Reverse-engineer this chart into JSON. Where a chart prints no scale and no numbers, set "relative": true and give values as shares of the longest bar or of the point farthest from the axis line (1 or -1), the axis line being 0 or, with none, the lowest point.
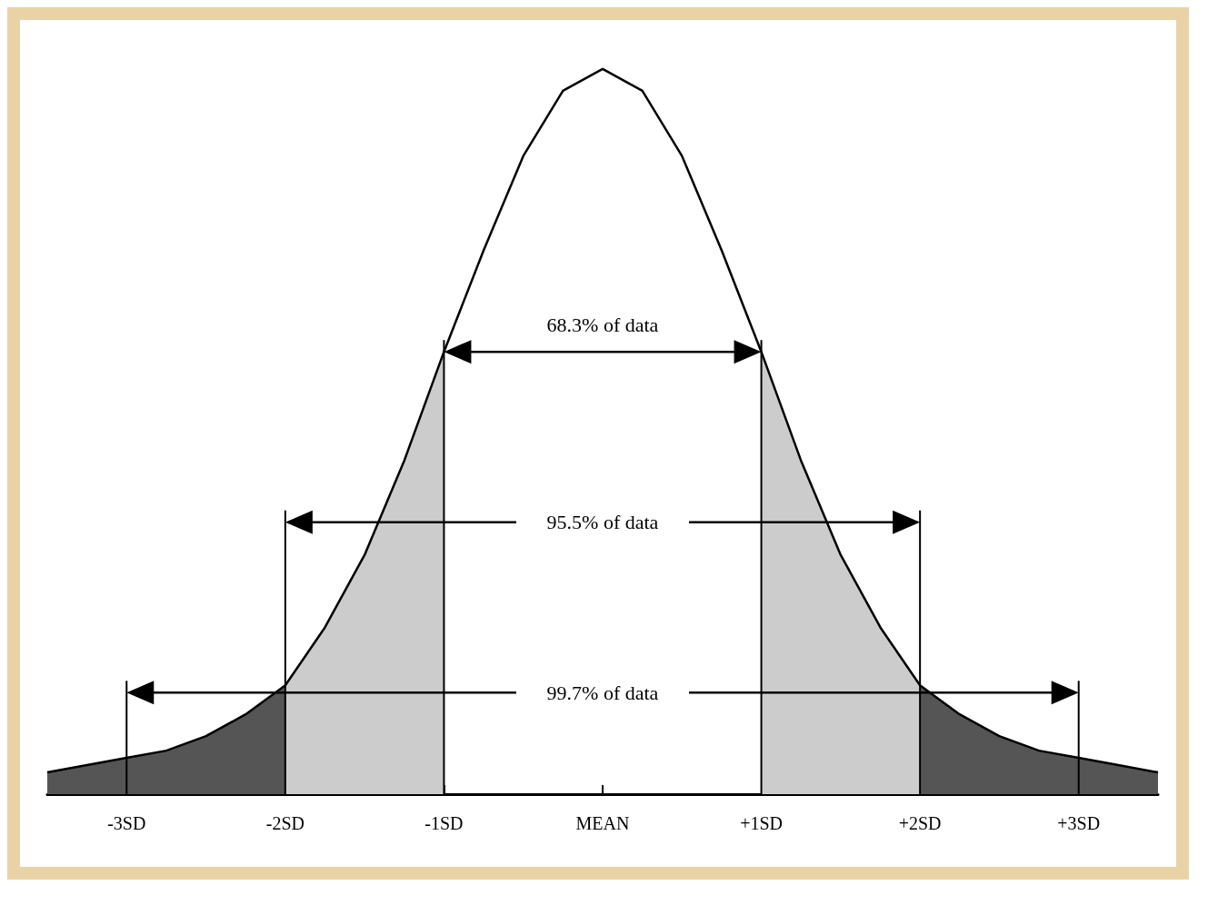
{
  "chart_data": {
    "type": "area",
    "relative": true,
    "xlim": [
      -3.5,
      3.5
    ],
    "xticks": [
      {
        "value": -3,
        "label": "-3SD"
      },
      {
        "value": -2,
        "label": "-2SD"
      },
      {
        "value": -1,
        "label": "-1SD"
      },
      {
        "value": 0,
        "label": "MEAN"
      },
      {
        "value": 1,
        "label": "+1SD"
      },
      {
        "value": 2,
        "label": "+2SD"
      },
      {
        "value": 3,
        "label": "+3SD"
      }
    ],
    "series": [
      {
        "type": "area",
        "color": "#555555",
        "x": [
          -3.5,
          -3.25,
          -3,
          -2.75,
          -2.5,
          -2.25,
          -2
        ],
        "values": [
          0.03,
          0.04,
          0.05,
          0.06,
          0.08,
          0.11,
          0.15
        ]
      },
      {
        "type": "area",
        "color": "#cccccc",
        "x": [
          -2,
          -1.75,
          -1.5,
          -1.25,
          -1
        ],
        "values": [
          0.15,
          0.23,
          0.33,
          0.46,
          0.61
        ]
      },
      {
        "type": "area",
        "color": "#cccccc",
        "x": [
          1,
          1.25,
          1.5,
          1.75,
          2
        ],
        "values": [
          0.61,
          0.46,
          0.33,
          0.23,
          0.15
        ]
      },
      {
        "type": "area",
        "color": "#555555",
        "x": [
          2,
          2.25,
          2.5,
          2.75,
          3,
          3.25,
          3.5
        ],
        "values": [
          0.15,
          0.11,
          0.08,
          0.06,
          0.05,
          0.04,
          0.03
        ]
      },
      {
        "type": "line",
        "color": "#000000",
        "x": [
          -3.5,
          -3.25,
          -3,
          -2.75,
          -2.5,
          -2.25,
          -2,
          -1.75,
          -1.5,
          -1.25,
          -1,
          -0.75,
          -0.5,
          -0.25,
          0,
          0.25,
          0.5,
          0.75,
          1,
          1.25,
          1.5,
          1.75,
          2,
          2.25,
          2.5,
          2.75,
          3,
          3.25,
          3.5
        ],
        "values": [
          0.03,
          0.04,
          0.05,
          0.06,
          0.08,
          0.11,
          0.15,
          0.23,
          0.33,
          0.46,
          0.61,
          0.75,
          0.88,
          0.97,
          1,
          0.97,
          0.88,
          0.75,
          0.61,
          0.46,
          0.33,
          0.23,
          0.15,
          0.11,
          0.08,
          0.06,
          0.05,
          0.04,
          0.03
        ]
      }
    ],
    "annotations": [
      "68.3% of data",
      "95.5% of data",
      "99.7% of data"
    ],
    "ref_lines": [
      {
        "axis": "x",
        "value": -3
      },
      {
        "axis": "x",
        "value": -2
      },
      {
        "axis": "x",
        "value": -1
      },
      {
        "axis": "x",
        "value": 1
      },
      {
        "axis": "x",
        "value": 2
      },
      {
        "axis": "x",
        "value": 3
      }
    ],
    "marker": "none",
    "grid": false
  }
}
